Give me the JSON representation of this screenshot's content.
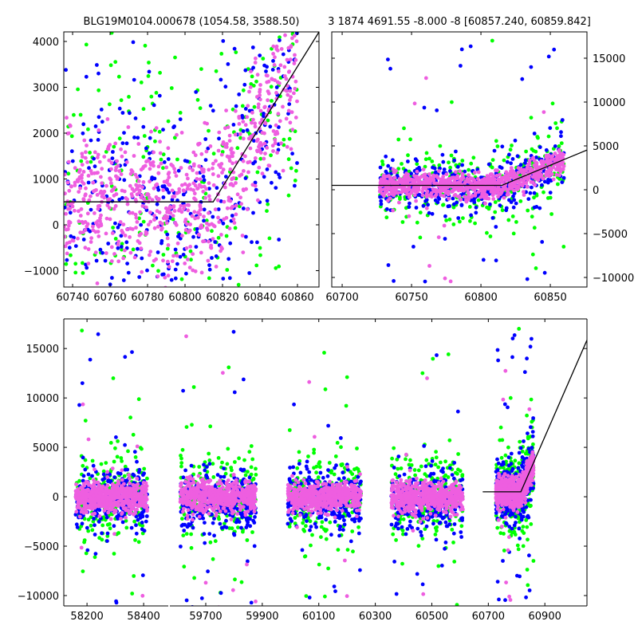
{
  "chart_data": {
    "type": "scatter",
    "titles": [
      "BLG19M0104.000678 (1054.58, 3588.50)",
      "3 1874 4691.55 -8.000 -8 [60857.240, 60859.842]"
    ],
    "colors": {
      "green": "#00ff00",
      "blue": "#0000ff",
      "pink": "#ee5ee0",
      "model": "#000000"
    },
    "series": [
      {
        "name": "green",
        "color": "#00ff00",
        "count_per_season": 220,
        "noise": 2200,
        "offset": 0,
        "outlier_frac": 0.08
      },
      {
        "name": "blue",
        "color": "#0000ff",
        "count_per_season": 300,
        "noise": 1500,
        "offset": -300,
        "outlier_frac": 0.07
      },
      {
        "name": "pink",
        "color": "#ee5ee0",
        "count_per_season": 550,
        "noise": 750,
        "offset": 0,
        "outlier_frac": 0.02
      }
    ],
    "seasons": [
      {
        "start": 58160,
        "end": 58413
      },
      {
        "start": 59610,
        "end": 59878
      },
      {
        "start": 59990,
        "end": 60250
      },
      {
        "start": 60356,
        "end": 60610
      },
      {
        "start": 60727,
        "end": 60860,
        "dense": true
      }
    ],
    "model": {
      "baseline": 500,
      "break_x": 60815,
      "slope": 65.6,
      "flat_start_bottom": 60680
    },
    "panels": [
      {
        "id": "top-left",
        "xlim": [
          60735.3,
          60871.5
        ],
        "ylim": [
          -1357,
          4209
        ],
        "xticks": [
          60740,
          60760,
          60780,
          60800,
          60820,
          60840,
          60860
        ],
        "yticks": [
          -1000,
          0,
          1000,
          2000,
          3000,
          4000
        ],
        "ytick_side": "left"
      },
      {
        "id": "top-right",
        "xlim": [
          60692.5,
          60876.4
        ],
        "ylim": [
          -11090,
          18000
        ],
        "xticks": [
          60700,
          60750,
          60800,
          60850
        ],
        "yticks": [
          -10000,
          -5000,
          0,
          5000,
          10000,
          15000
        ],
        "ytick_side": "right"
      },
      {
        "id": "bottom",
        "broken_x": [
          [
            58118,
            58487
          ],
          [
            59573,
            61049
          ]
        ],
        "ylim": [
          -11050,
          18000
        ],
        "xticks": [
          58200,
          58400,
          59700,
          59900,
          60100,
          60300,
          60500,
          60700,
          60900
        ],
        "yticks": [
          -10000,
          -5000,
          0,
          5000,
          10000,
          15000
        ],
        "ytick_side": "left"
      }
    ],
    "seed": 1874
  }
}
